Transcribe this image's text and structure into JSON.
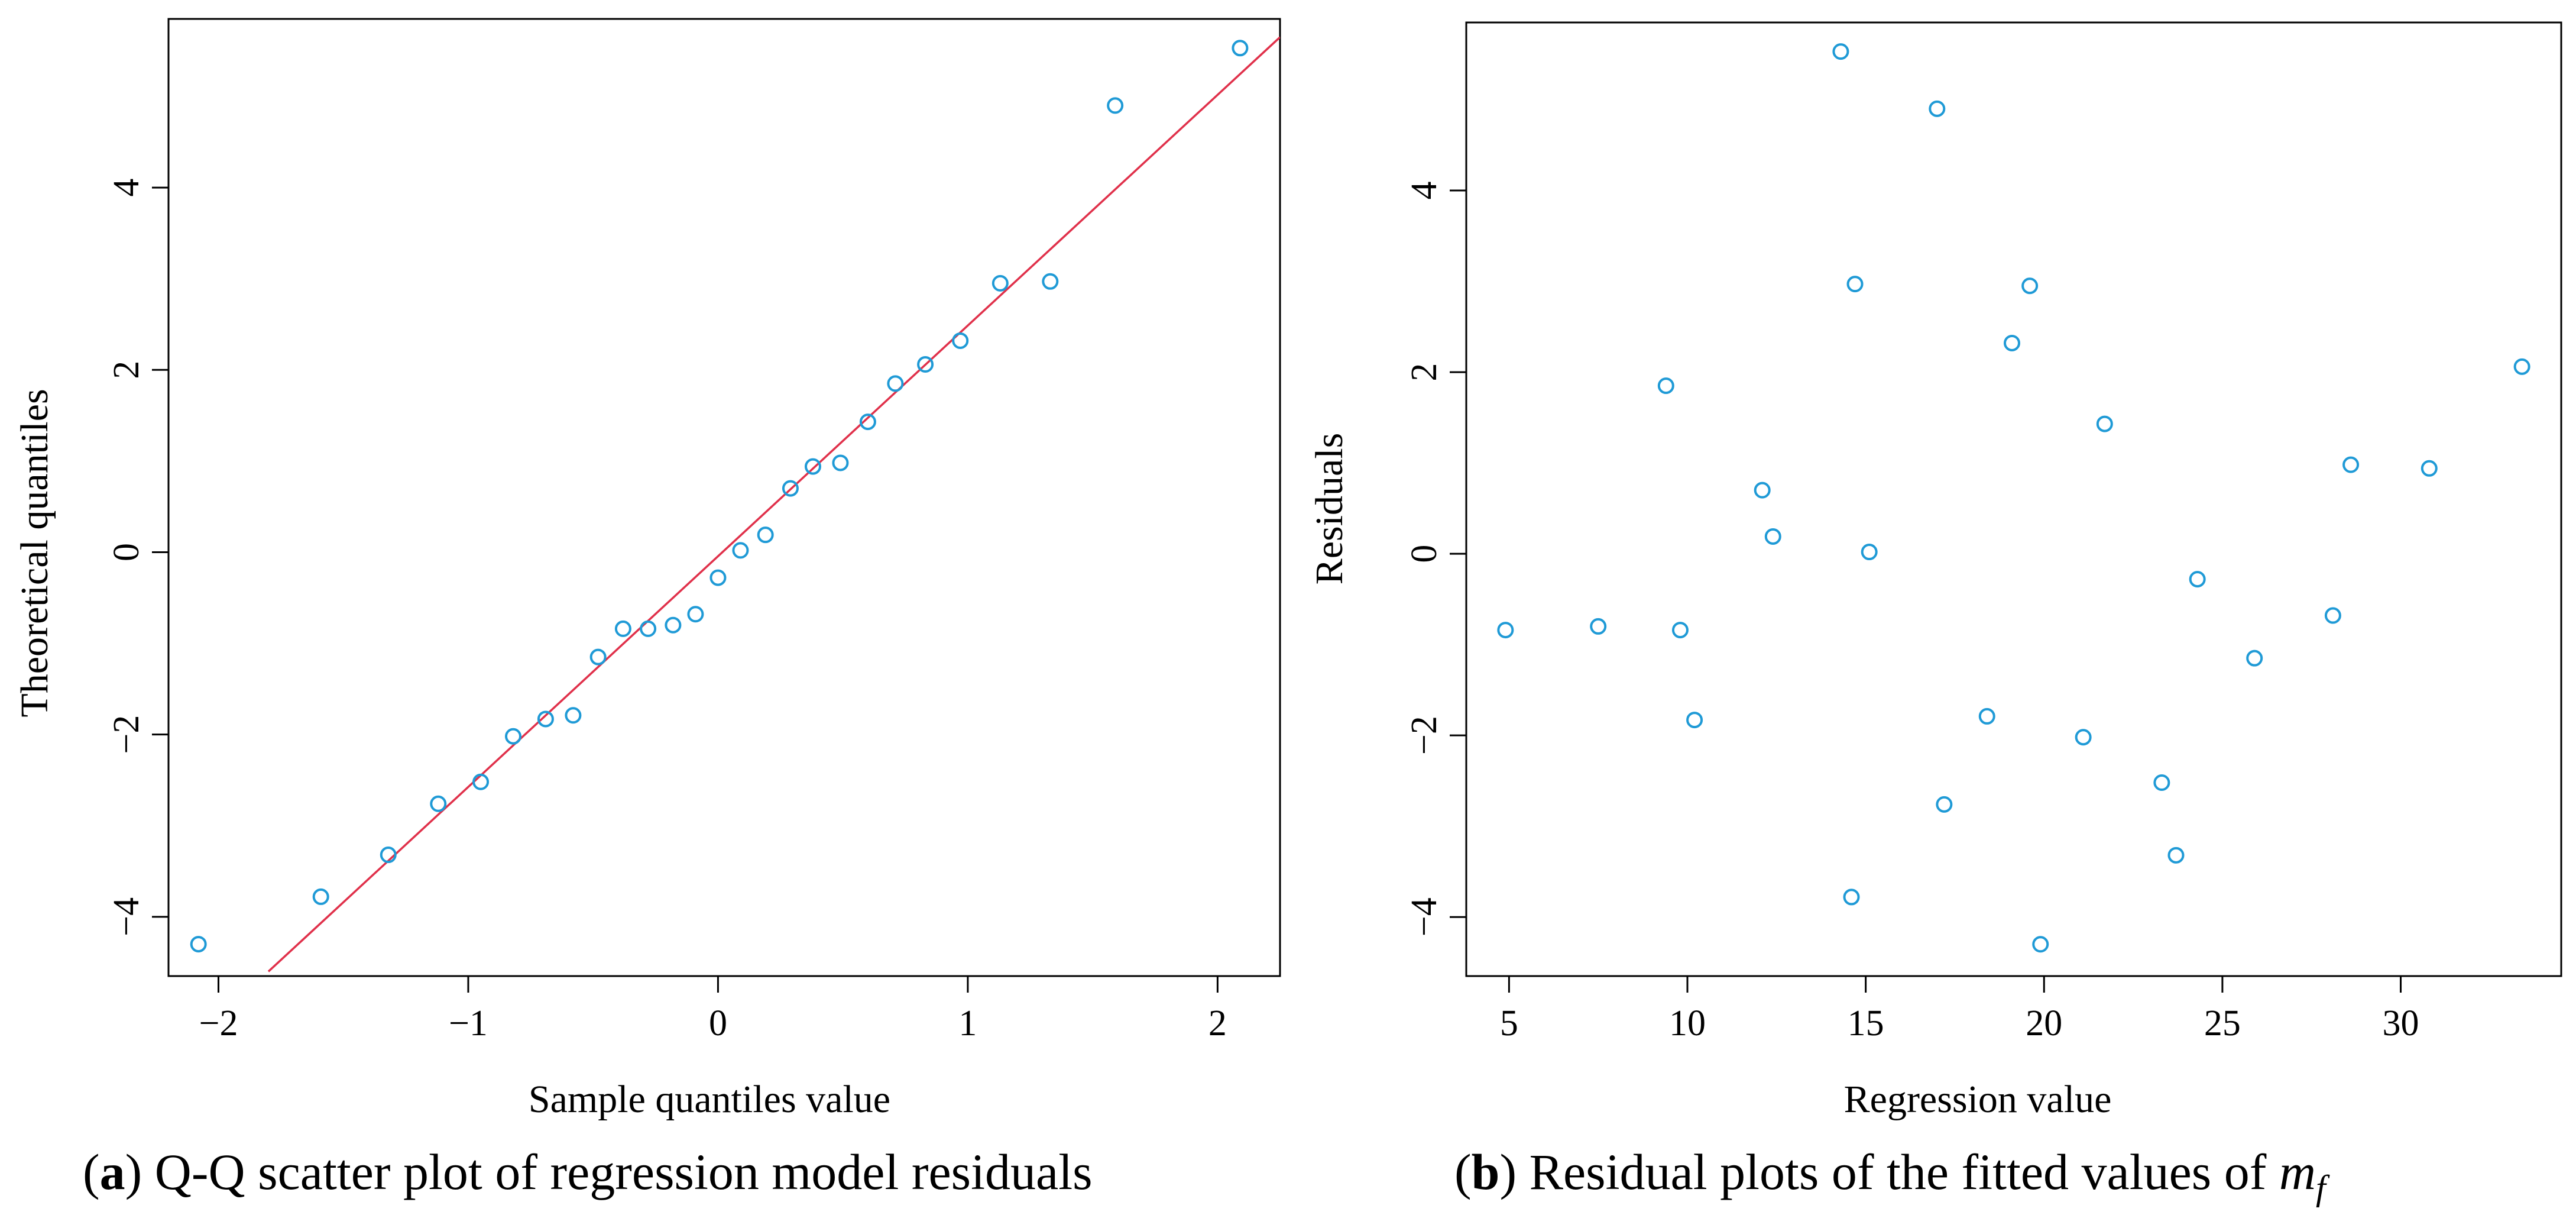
{
  "chart_data": [
    {
      "type": "scatter",
      "panel": "a",
      "caption": {
        "letter": "a",
        "text": " Q-Q scatter plot of regression model residuals"
      },
      "xlabel": "Sample quantiles value",
      "ylabel": "Theoretical quantiles",
      "xlim": [
        -2.2,
        2.25
      ],
      "ylim": [
        -4.65,
        5.85
      ],
      "xticks": [
        -2,
        -1,
        0,
        1,
        2
      ],
      "yticks": [
        -4,
        -2,
        0,
        2,
        4
      ],
      "xtick_labels": [
        "−2",
        "−1",
        "0",
        "1",
        "2"
      ],
      "ytick_labels": [
        "−4",
        "−2",
        "0",
        "2",
        "4"
      ],
      "point_color": "#1f9ad6",
      "line_color": "#e0304a",
      "reference_line": {
        "x": [
          -1.8,
          2.25
        ],
        "y": [
          -4.6,
          5.65
        ]
      },
      "series": [
        {
          "name": "residuals",
          "x": [
            -2.08,
            -1.59,
            -1.32,
            -1.12,
            -0.95,
            -0.82,
            -0.69,
            -0.58,
            -0.48,
            -0.38,
            -0.28,
            -0.18,
            -0.09,
            0.0,
            0.09,
            0.19,
            0.29,
            0.38,
            0.49,
            0.6,
            0.71,
            0.83,
            0.97,
            1.13,
            1.33,
            1.59,
            2.09
          ],
          "y": [
            -4.3,
            -3.78,
            -3.32,
            -2.76,
            -2.52,
            -2.02,
            -1.83,
            -1.79,
            -1.15,
            -0.84,
            -0.84,
            -0.8,
            -0.68,
            -0.28,
            0.02,
            0.19,
            0.7,
            0.94,
            0.98,
            1.43,
            1.85,
            2.06,
            2.32,
            2.95,
            2.97,
            4.9,
            5.53
          ]
        }
      ]
    },
    {
      "type": "scatter",
      "panel": "b",
      "caption": {
        "letter": "b",
        "text": " Residual plots of the fitted values of ",
        "math": "m",
        "sub": "f"
      },
      "xlabel": "Regression value",
      "ylabel": "Residuals",
      "xlim": [
        3.8,
        34.5
      ],
      "ylim": [
        -4.65,
        5.85
      ],
      "xticks": [
        5,
        10,
        15,
        20,
        25,
        30
      ],
      "yticks": [
        -4,
        -2,
        0,
        2,
        4
      ],
      "xtick_labels": [
        "5",
        "10",
        "15",
        "20",
        "25",
        "30"
      ],
      "ytick_labels": [
        "−4",
        "−2",
        "0",
        "2",
        "4"
      ],
      "point_color": "#1f9ad6",
      "series": [
        {
          "name": "residuals",
          "x": [
            4.9,
            7.5,
            9.4,
            9.8,
            10.2,
            12.1,
            12.4,
            14.3,
            14.6,
            14.7,
            15.1,
            17.0,
            17.2,
            18.4,
            19.1,
            19.6,
            19.9,
            21.1,
            21.7,
            23.3,
            23.7,
            24.3,
            25.9,
            28.1,
            28.6,
            30.8,
            33.4
          ],
          "y": [
            -0.84,
            -0.8,
            1.85,
            -0.84,
            -1.83,
            0.7,
            0.19,
            5.53,
            -3.78,
            2.97,
            0.02,
            4.9,
            -2.76,
            -1.79,
            2.32,
            2.95,
            -4.3,
            -2.02,
            1.43,
            -2.52,
            -3.32,
            -0.28,
            -1.15,
            -0.68,
            0.98,
            0.94,
            2.06
          ]
        }
      ]
    }
  ]
}
